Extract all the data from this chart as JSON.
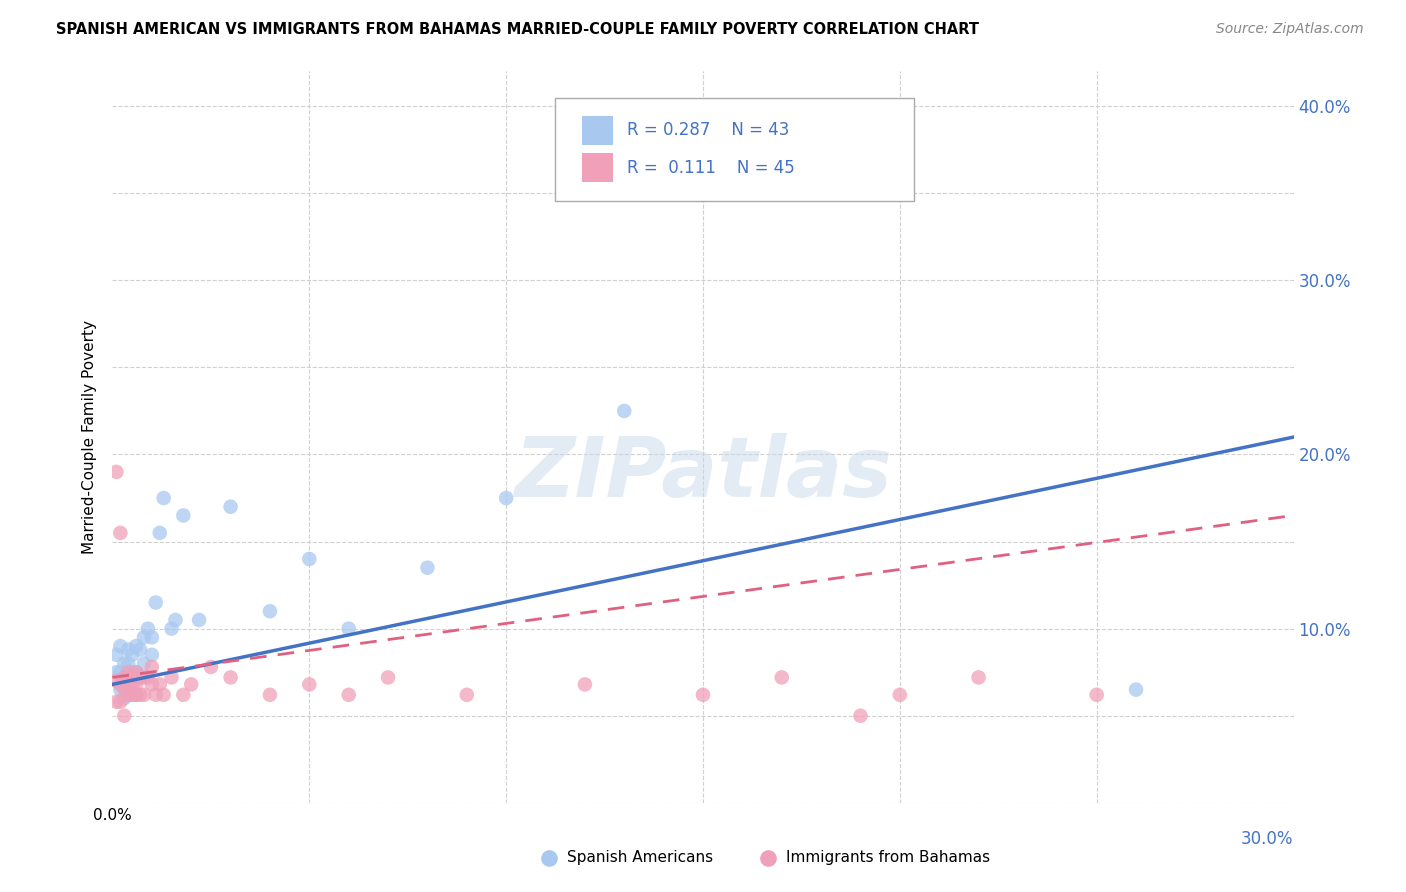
{
  "title": "SPANISH AMERICAN VS IMMIGRANTS FROM BAHAMAS MARRIED-COUPLE FAMILY POVERTY CORRELATION CHART",
  "source": "Source: ZipAtlas.com",
  "ylabel": "Married-Couple Family Poverty",
  "watermark": "ZIPatlas",
  "xlim": [
    0.0,
    0.3
  ],
  "ylim": [
    0.0,
    0.42
  ],
  "xticks": [
    0.0,
    0.05,
    0.1,
    0.15,
    0.2,
    0.25,
    0.3
  ],
  "yticks": [
    0.0,
    0.05,
    0.1,
    0.15,
    0.2,
    0.25,
    0.3,
    0.35,
    0.4
  ],
  "color_blue": "#a8c8f0",
  "color_pink": "#f0a0b8",
  "line_blue": "#4472c4",
  "line_pink": "#e06080",
  "grid_color": "#d0d0d0",
  "legend_text1": "R = 0.287    N = 43",
  "legend_text2": "R =  0.111    N = 45",
  "bottom_label1": "Spanish Americans",
  "bottom_label2": "Immigrants from Bahamas",
  "spanish_x": [
    0.001,
    0.001,
    0.002,
    0.002,
    0.002,
    0.003,
    0.003,
    0.003,
    0.003,
    0.004,
    0.004,
    0.004,
    0.004,
    0.004,
    0.005,
    0.005,
    0.005,
    0.005,
    0.006,
    0.006,
    0.006,
    0.007,
    0.007,
    0.008,
    0.008,
    0.009,
    0.01,
    0.01,
    0.011,
    0.012,
    0.013,
    0.015,
    0.016,
    0.018,
    0.022,
    0.03,
    0.04,
    0.05,
    0.06,
    0.08,
    0.1,
    0.13,
    0.26
  ],
  "spanish_y": [
    0.075,
    0.085,
    0.065,
    0.075,
    0.09,
    0.06,
    0.068,
    0.072,
    0.08,
    0.062,
    0.068,
    0.072,
    0.08,
    0.088,
    0.062,
    0.068,
    0.075,
    0.085,
    0.062,
    0.075,
    0.09,
    0.072,
    0.088,
    0.08,
    0.095,
    0.1,
    0.085,
    0.095,
    0.115,
    0.155,
    0.175,
    0.1,
    0.105,
    0.165,
    0.105,
    0.17,
    0.11,
    0.14,
    0.1,
    0.135,
    0.175,
    0.225,
    0.065
  ],
  "bahamas_x": [
    0.001,
    0.001,
    0.001,
    0.002,
    0.002,
    0.002,
    0.003,
    0.003,
    0.003,
    0.004,
    0.004,
    0.004,
    0.005,
    0.005,
    0.005,
    0.006,
    0.006,
    0.006,
    0.007,
    0.007,
    0.008,
    0.008,
    0.009,
    0.01,
    0.01,
    0.011,
    0.012,
    0.013,
    0.015,
    0.018,
    0.02,
    0.025,
    0.03,
    0.04,
    0.05,
    0.06,
    0.07,
    0.09,
    0.12,
    0.15,
    0.17,
    0.19,
    0.2,
    0.22,
    0.25
  ],
  "bahamas_y": [
    0.19,
    0.07,
    0.058,
    0.155,
    0.068,
    0.058,
    0.05,
    0.065,
    0.072,
    0.062,
    0.068,
    0.075,
    0.062,
    0.068,
    0.072,
    0.062,
    0.068,
    0.075,
    0.062,
    0.072,
    0.062,
    0.072,
    0.072,
    0.068,
    0.078,
    0.062,
    0.068,
    0.062,
    0.072,
    0.062,
    0.068,
    0.078,
    0.072,
    0.062,
    0.068,
    0.062,
    0.072,
    0.062,
    0.068,
    0.062,
    0.072,
    0.05,
    0.062,
    0.072,
    0.062
  ]
}
